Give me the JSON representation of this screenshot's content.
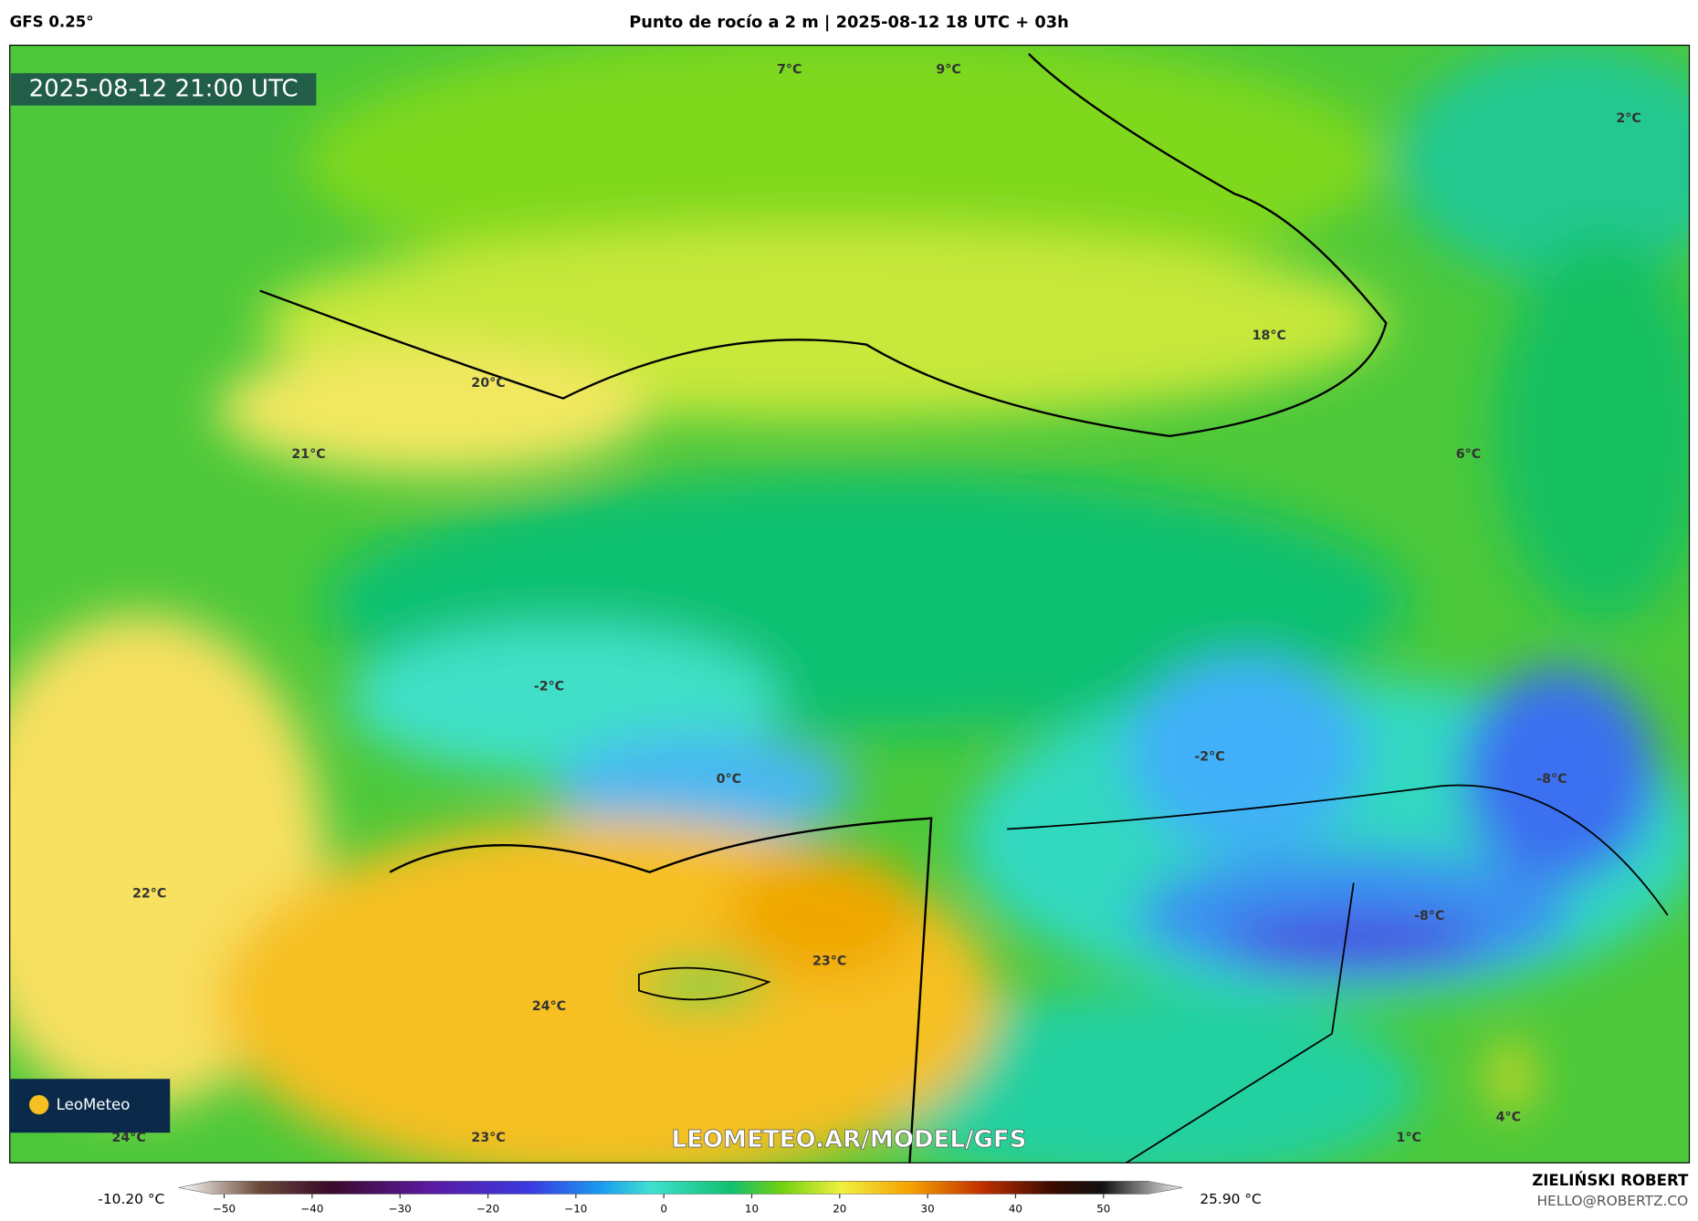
{
  "header": {
    "model": "GFS 0.25°",
    "title": "Punto de rocío a 2 m | 2025-08-12 18 UTC + 03h"
  },
  "map": {
    "timestamp": "2025-08-12 21:00 UTC",
    "watermark": "LEOMETEO.AR/MODEL/GFS",
    "logo": "LeoMeteo",
    "labels": [
      "7°C",
      "9°C",
      "2°C",
      "18°C",
      "20°C",
      "21°C",
      "6°C",
      "-2°C",
      "0°C",
      "-2°C",
      "-8°C",
      "-8°C",
      "22°C",
      "23°C",
      "24°C",
      "24°C",
      "23°C",
      "1°C",
      "4°C"
    ]
  },
  "colorbar": {
    "min": "-10.20 °C",
    "max": "25.90 °C",
    "ticks": [
      "−50",
      "−40",
      "−30",
      "−20",
      "−10",
      "0",
      "10",
      "20",
      "30",
      "40",
      "50"
    ]
  },
  "footer": {
    "author": "ZIELIŃSKI ROBERT",
    "email": "HELLO@ROBERTZ.CO"
  }
}
